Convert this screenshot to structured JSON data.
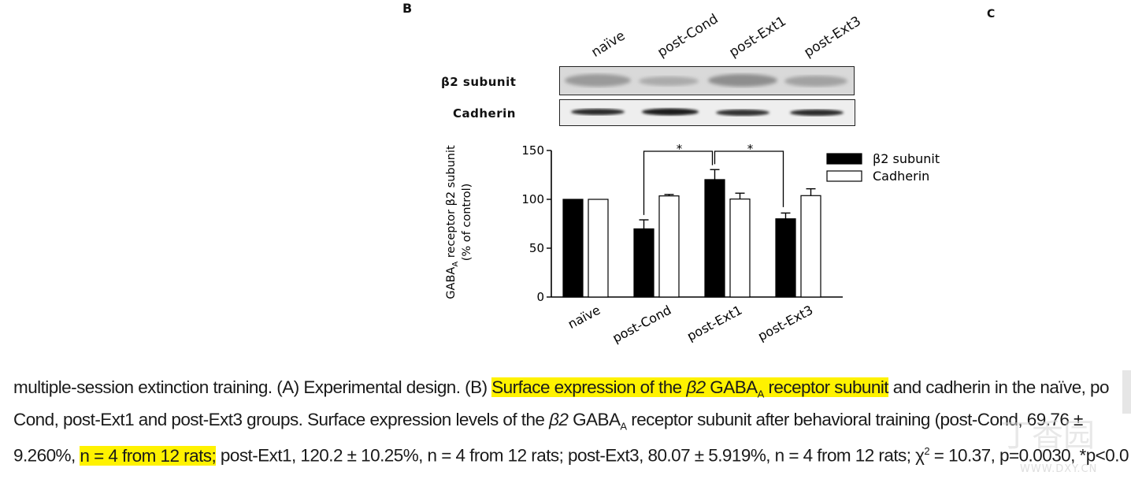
{
  "panel_letters": {
    "left": "B",
    "right": "C"
  },
  "blot": {
    "lanes": [
      "naïve",
      "post-Cond",
      "post-Ext1",
      "post-Ext3"
    ],
    "rows": [
      "β2 subunit",
      "Cadherin"
    ]
  },
  "chart_data": {
    "type": "bar",
    "categories": [
      "naïve",
      "post-Cond",
      "post-Ext1",
      "post-Ext3"
    ],
    "series": [
      {
        "name": "β2 subunit",
        "color": "#000000",
        "values": [
          100,
          69.76,
          120.2,
          80.07
        ],
        "errors": [
          0,
          9.26,
          10.25,
          5.919
        ]
      },
      {
        "name": "Cadherin",
        "color": "#ffffff",
        "values": [
          100,
          103.5,
          100.3,
          103.8
        ],
        "errors": [
          0,
          1.5,
          6.0,
          7.0
        ]
      }
    ],
    "ylabel_main": "GABA",
    "ylabel_sub": "A",
    "ylabel_rest": " receptor β2 subunit",
    "ylabel_line2": "(% of control)",
    "ylim": [
      0,
      150
    ],
    "yticks": [
      0,
      50,
      100,
      150
    ],
    "significance": [
      {
        "from": "post-Cond",
        "to": "post-Ext1",
        "label": "*"
      },
      {
        "from": "post-Ext1",
        "to": "post-Ext3",
        "label": "*"
      }
    ],
    "legend_position": "top-right"
  },
  "caption": {
    "l1_a": "multiple-session extinction training. (",
    "l1_b": "A",
    "l1_c": ") Experimental design. (",
    "l1_d": "B",
    "l1_e": ") ",
    "l1_hl1": "Surface expression of the ",
    "l1_hl_beta": "β2",
    "l1_hl2": " GABA",
    "l1_hl_sub": "A",
    "l1_hl3": " receptor subunit",
    "l1_f": " and cadherin in the naïve, po",
    "l2_a": "Cond, post-Ext1 and post-Ext3 groups. Surface expression levels of the ",
    "l2_beta": "β2",
    "l2_b": " GABA",
    "l2_sub": "A",
    "l2_c": " receptor subunit after behavioral training (post-Cond, 69.76 ±",
    "l3_a": "9.260%, ",
    "l3_hl": "n = 4 from 12 rats;",
    "l3_b": " post-Ext1, 120.2 ± 10.25%, n = 4 from 12 rats; post-Ext3, 80.07 ± 5.919%, n = 4 from 12 rats; χ",
    "l3_sup": "2",
    "l3_c": " = 10.37, p=0.0030, *p<0.0"
  },
  "watermark": {
    "logo": "丁香园",
    "url": "WWW.DXY.CN"
  }
}
